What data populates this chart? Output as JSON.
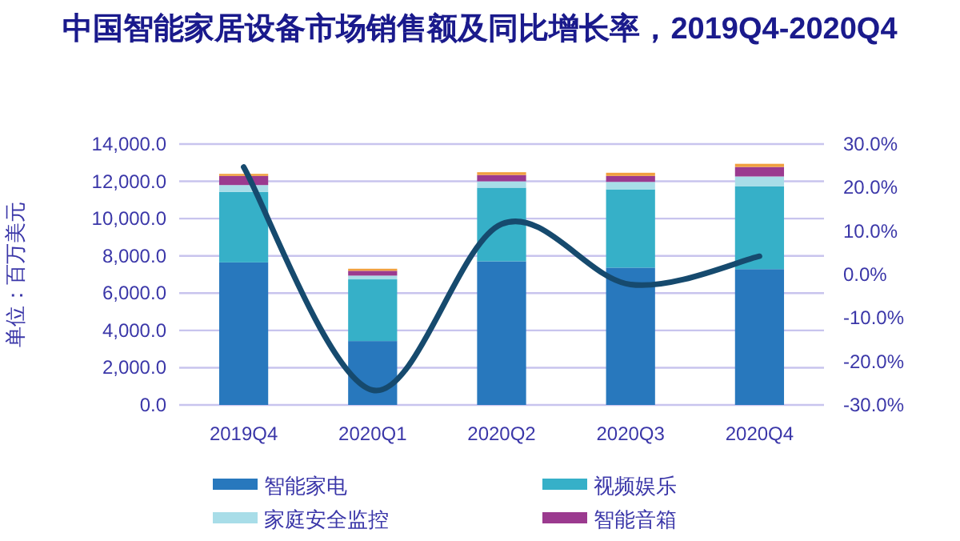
{
  "chart_data": {
    "type": "bar",
    "stacked": true,
    "title": "中国智能家居设备市场销售额及同比增长率，2019Q4-2020Q4",
    "ylabel": "单位：百万美元",
    "categories": [
      "2019Q4",
      "2020Q1",
      "2020Q2",
      "2020Q3",
      "2020Q4"
    ],
    "series": [
      {
        "name": "智能家电",
        "color": "#2878bd",
        "values": [
          7650,
          3430,
          7710,
          7370,
          7290
        ]
      },
      {
        "name": "视频娱乐",
        "color": "#36b0c8",
        "values": [
          3780,
          3310,
          3950,
          4200,
          4450
        ]
      },
      {
        "name": "家庭安全监控",
        "color": "#a8dde8",
        "values": [
          370,
          200,
          340,
          400,
          520
        ]
      },
      {
        "name": "智能音箱",
        "color": "#9b3a8f",
        "values": [
          490,
          260,
          340,
          320,
          510
        ]
      },
      {
        "color": "#f0a040",
        "values": [
          110,
          110,
          150,
          170,
          170
        ]
      },
      {
        "type": "line",
        "axis": "y2",
        "color": "#164a6e",
        "values": [
          24.7,
          -26.6,
          11.6,
          -2.3,
          4.2
        ]
      }
    ],
    "ylim": [
      0,
      14000
    ],
    "yticks": [
      {
        "value": 0,
        "label": "0.0"
      },
      {
        "value": 2000,
        "label": "2,000.0"
      },
      {
        "value": 4000,
        "label": "4,000.0"
      },
      {
        "value": 6000,
        "label": "6,000.0"
      },
      {
        "value": 8000,
        "label": "8,000.0"
      },
      {
        "value": 10000,
        "label": "10,000.0"
      },
      {
        "value": 12000,
        "label": "12,000.0"
      },
      {
        "value": 14000,
        "label": "14,000.0"
      }
    ],
    "y2lim": [
      -30,
      30
    ],
    "y2ticks": [
      {
        "value": -30,
        "label": "-30.0%"
      },
      {
        "value": -20,
        "label": "-20.0%"
      },
      {
        "value": -10,
        "label": "-10.0%"
      },
      {
        "value": 0,
        "label": "0.0%"
      },
      {
        "value": 10,
        "label": "10.0%"
      },
      {
        "value": 20,
        "label": "20.0%"
      },
      {
        "value": 30,
        "label": "30.0%"
      }
    ],
    "grid": "y",
    "legend": "bottom"
  }
}
